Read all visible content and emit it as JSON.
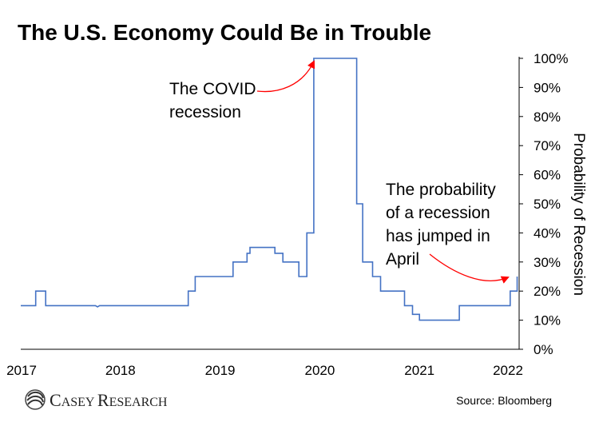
{
  "title": "The U.S. Economy Could Be in Trouble",
  "source": "Source: Bloomberg",
  "brand": {
    "big_c": "C",
    "rest_1": "ASEY ",
    "big_r": "R",
    "rest_2": "ESEARCH"
  },
  "annotations": [
    {
      "lines": [
        "The COVID",
        "recession"
      ],
      "points_to": {
        "x": 2019.97,
        "y": 100
      }
    },
    {
      "lines": [
        "The probability",
        "of a recession",
        "has jumped in",
        "April"
      ],
      "points_to": {
        "x": 2021.95,
        "y": 25
      }
    }
  ],
  "colors": {
    "line": "#4472C4",
    "arrow": "#FF0000",
    "axis": "#000000"
  },
  "chart_data": {
    "type": "line",
    "title": "The U.S. Economy Could Be in Trouble",
    "xlabel": "",
    "ylabel": "Probability of Recession",
    "xlim": [
      2017.0,
      2022.0
    ],
    "ylim": [
      0,
      100
    ],
    "x_ticks": [
      {
        "value": 2017.0,
        "label": "2017"
      },
      {
        "value": 2018.0,
        "label": "2018"
      },
      {
        "value": 2019.0,
        "label": "2019"
      },
      {
        "value": 2020.0,
        "label": "2020"
      },
      {
        "value": 2021.0,
        "label": "2021"
      },
      {
        "value": 2022.0,
        "label": "2022"
      }
    ],
    "y_ticks": [
      {
        "value": 0,
        "label": "0%"
      },
      {
        "value": 10,
        "label": "10%"
      },
      {
        "value": 20,
        "label": "20%"
      },
      {
        "value": 30,
        "label": "30%"
      },
      {
        "value": 40,
        "label": "40%"
      },
      {
        "value": 50,
        "label": "50%"
      },
      {
        "value": 60,
        "label": "60%"
      },
      {
        "value": 70,
        "label": "70%"
      },
      {
        "value": 80,
        "label": "80%"
      },
      {
        "value": 90,
        "label": "90%"
      },
      {
        "value": 100,
        "label": "100%"
      }
    ],
    "y_axis_side": "right",
    "grid": false,
    "series": [
      {
        "style": "step",
        "points": [
          [
            2017.0,
            15
          ],
          [
            2017.15,
            15
          ],
          [
            2017.15,
            20
          ],
          [
            2017.25,
            20
          ],
          [
            2017.25,
            15
          ],
          [
            2017.75,
            15
          ],
          [
            2017.77,
            14.6
          ],
          [
            2017.79,
            15
          ],
          [
            2018.68,
            15
          ],
          [
            2018.68,
            20
          ],
          [
            2018.75,
            20
          ],
          [
            2018.75,
            25
          ],
          [
            2019.13,
            25
          ],
          [
            2019.13,
            30
          ],
          [
            2019.27,
            30
          ],
          [
            2019.27,
            33
          ],
          [
            2019.3,
            33
          ],
          [
            2019.3,
            35
          ],
          [
            2019.55,
            35
          ],
          [
            2019.55,
            33
          ],
          [
            2019.63,
            33
          ],
          [
            2019.63,
            30
          ],
          [
            2019.79,
            30
          ],
          [
            2019.79,
            25
          ],
          [
            2019.87,
            25
          ],
          [
            2019.87,
            40
          ],
          [
            2019.94,
            40
          ],
          [
            2019.94,
            100
          ],
          [
            2020.37,
            100
          ],
          [
            2020.37,
            50
          ],
          [
            2020.43,
            50
          ],
          [
            2020.43,
            30
          ],
          [
            2020.53,
            30
          ],
          [
            2020.53,
            25
          ],
          [
            2020.61,
            25
          ],
          [
            2020.61,
            20
          ],
          [
            2020.85,
            20
          ],
          [
            2020.85,
            15
          ],
          [
            2020.93,
            15
          ],
          [
            2020.93,
            12
          ],
          [
            2021.0,
            12
          ],
          [
            2021.0,
            10
          ],
          [
            2021.4,
            10
          ],
          [
            2021.4,
            15
          ],
          [
            2021.91,
            15
          ],
          [
            2021.91,
            20
          ],
          [
            2021.98,
            20
          ],
          [
            2021.98,
            25
          ]
        ]
      }
    ]
  }
}
